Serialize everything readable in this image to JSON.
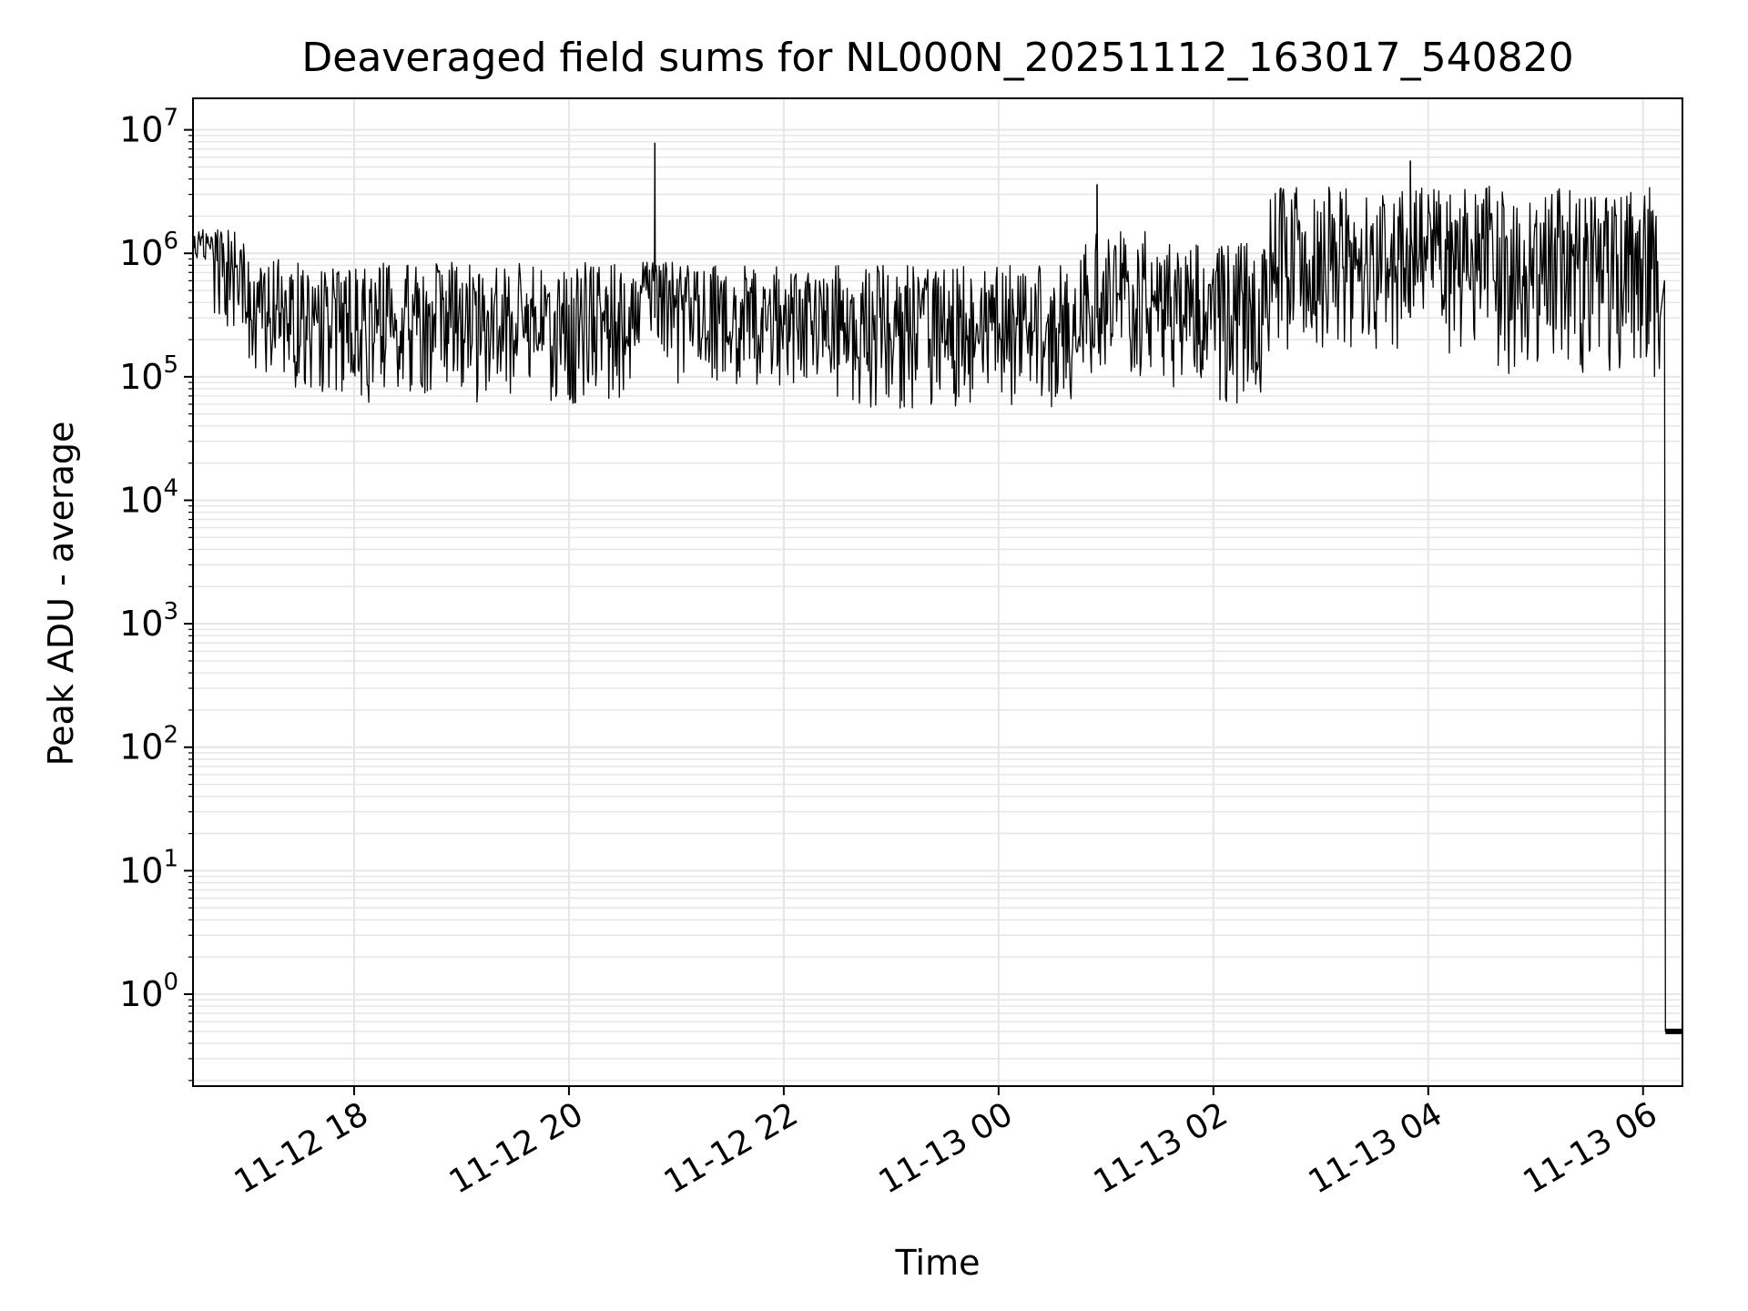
{
  "chart_data": {
    "type": "line",
    "title": "Deaveraged field sums for NL000N_20251112_163017_540820",
    "xlabel": "Time",
    "ylabel": "Peak ADU - average",
    "y_scale": "log",
    "ylim": [
      0.18,
      18000000
    ],
    "xlim": [
      "2025-11-12 16:30",
      "2025-11-13 06:22"
    ],
    "grid": true,
    "line_color": "#000000",
    "grid_color": "#e6e6e6",
    "x_ticks": [
      {
        "t": "2025-11-12 18:00",
        "label": "11-12 18"
      },
      {
        "t": "2025-11-12 20:00",
        "label": "11-12 20"
      },
      {
        "t": "2025-11-12 22:00",
        "label": "11-12 22"
      },
      {
        "t": "2025-11-13 00:00",
        "label": "11-13 00"
      },
      {
        "t": "2025-11-13 02:00",
        "label": "11-13 02"
      },
      {
        "t": "2025-11-13 04:00",
        "label": "11-13 04"
      },
      {
        "t": "2025-11-13 06:00",
        "label": "11-13 06"
      }
    ],
    "y_ticks": [
      {
        "value": 1,
        "base": "10",
        "exp": "0"
      },
      {
        "value": 10,
        "base": "10",
        "exp": "1"
      },
      {
        "value": 100,
        "base": "10",
        "exp": "2"
      },
      {
        "value": 1000,
        "base": "10",
        "exp": "3"
      },
      {
        "value": 10000,
        "base": "10",
        "exp": "4"
      },
      {
        "value": 100000,
        "base": "10",
        "exp": "5"
      },
      {
        "value": 1000000,
        "base": "10",
        "exp": "6"
      },
      {
        "value": 10000000,
        "base": "10",
        "exp": "7"
      }
    ],
    "series": [
      {
        "segments": [
          {
            "start": "2025-11-12 16:30",
            "end": "2025-11-12 16:42",
            "low": 800000,
            "high": 1600000
          },
          {
            "start": "2025-11-12 16:42",
            "end": "2025-11-12 17:00",
            "low": 250000,
            "high": 1600000
          },
          {
            "start": "2025-11-12 17:00",
            "end": "2025-11-12 17:20",
            "low": 100000,
            "high": 900000
          },
          {
            "start": "2025-11-12 17:20",
            "end": "2025-11-12 19:00",
            "low": 60000,
            "high": 850000
          },
          {
            "start": "2025-11-12 19:00",
            "end": "2025-11-12 20:35",
            "low": 60000,
            "high": 850000
          },
          {
            "start": "2025-11-12 20:35",
            "end": "2025-11-12 21:00",
            "low": 120000,
            "high": 850000
          },
          {
            "start": "2025-11-12 21:00",
            "end": "2025-11-12 22:30",
            "low": 80000,
            "high": 800000
          },
          {
            "start": "2025-11-12 22:30",
            "end": "2025-11-13 00:45",
            "low": 55000,
            "high": 800000
          },
          {
            "start": "2025-11-13 00:45",
            "end": "2025-11-13 01:30",
            "low": 100000,
            "high": 1500000
          },
          {
            "start": "2025-11-13 01:30",
            "end": "2025-11-13 02:30",
            "low": 60000,
            "high": 1200000
          },
          {
            "start": "2025-11-13 02:30",
            "end": "2025-11-13 04:30",
            "low": 150000,
            "high": 3500000
          },
          {
            "start": "2025-11-13 04:30",
            "end": "2025-11-13 06:10",
            "low": 100000,
            "high": 3500000
          }
        ],
        "spikes": [
          {
            "t": "2025-11-12 20:48",
            "value": 7800000
          },
          {
            "t": "2025-11-13 00:55",
            "value": 3600000
          },
          {
            "t": "2025-11-13 03:50",
            "value": 5600000
          }
        ],
        "end_drop": {
          "t": "2025-11-13 06:12",
          "value": 0.5
        }
      }
    ]
  }
}
